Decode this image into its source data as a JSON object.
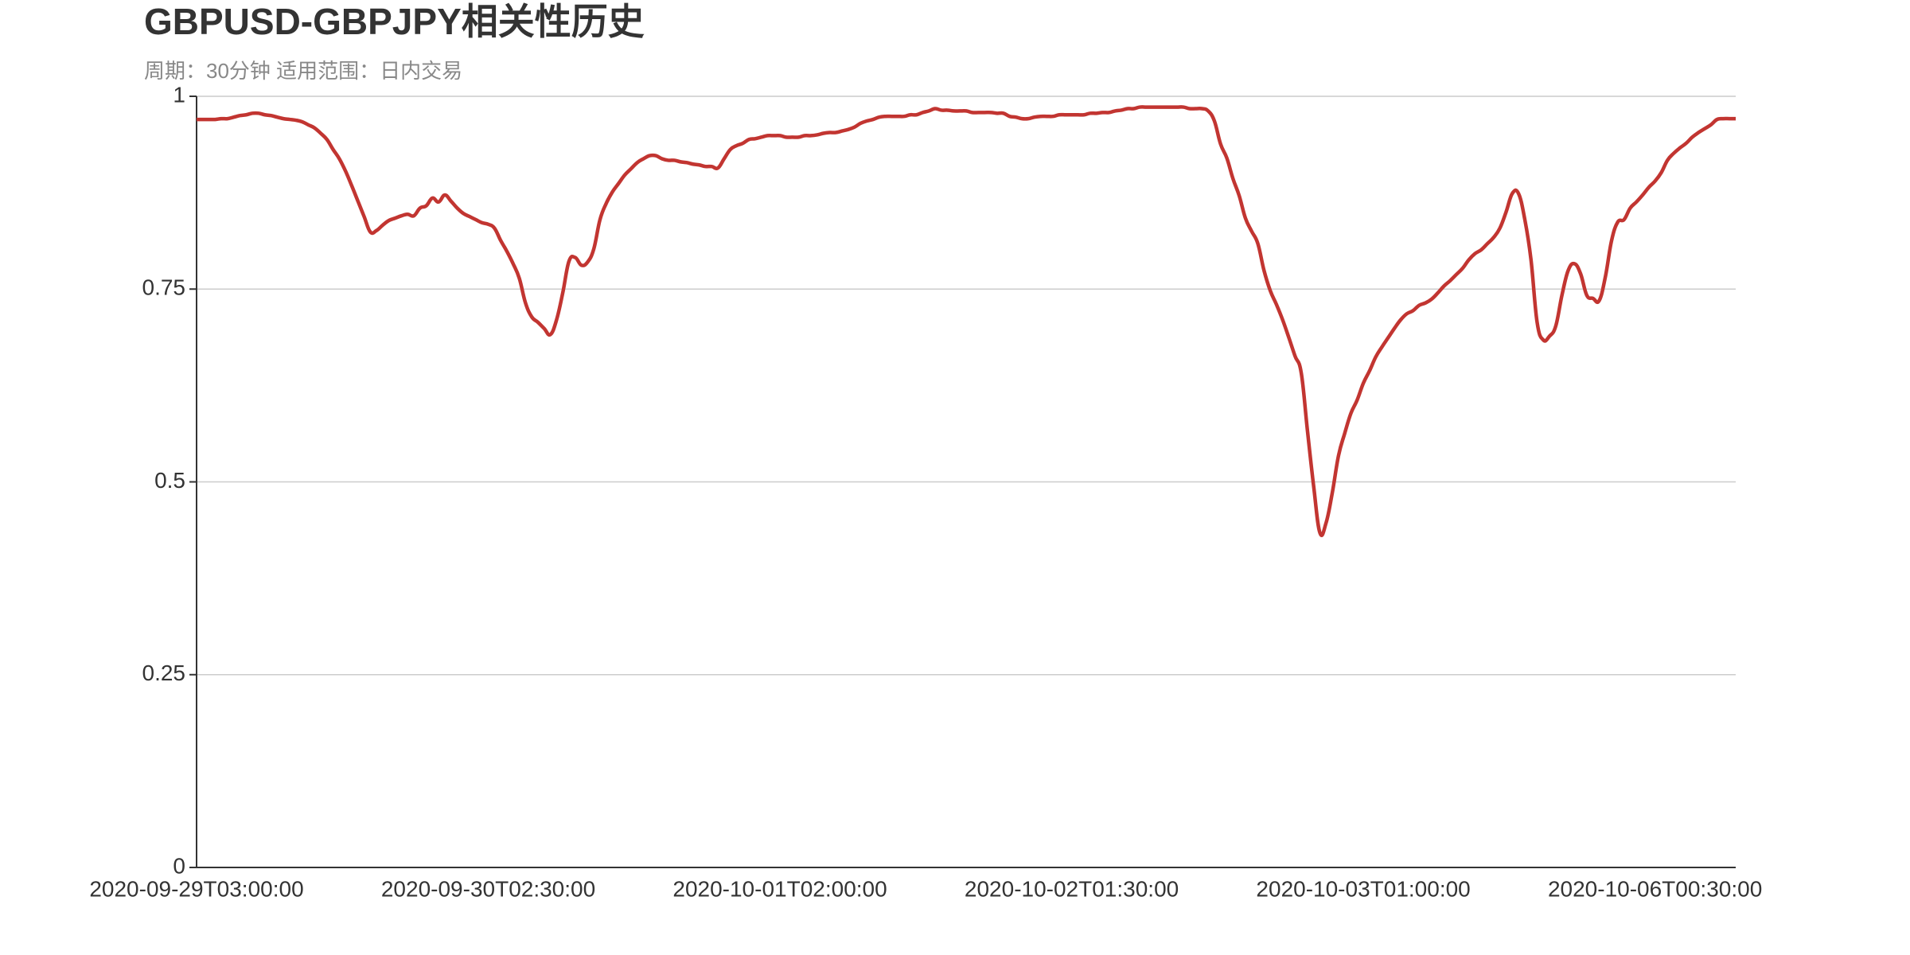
{
  "chart_data": {
    "type": "line",
    "title": "GBPUSD-GBPJPY相关性历史",
    "subtitle": "周期：30分钟 适用范围：日内交易",
    "categories": [
      "2020-09-29T03:00:00",
      null,
      null,
      null,
      null,
      null,
      null,
      null,
      null,
      null,
      null,
      null,
      null,
      null,
      null,
      null,
      null,
      null,
      null,
      null,
      null,
      null,
      null,
      null,
      null,
      null,
      null,
      null,
      null,
      null,
      null,
      null,
      null,
      null,
      null,
      null,
      null,
      null,
      null,
      null,
      null,
      null,
      null,
      null,
      null,
      null,
      null,
      "2020-09-30T02:30:00",
      null,
      null,
      null,
      null,
      null,
      null,
      null,
      null,
      null,
      null,
      null,
      null,
      null,
      null,
      null,
      null,
      null,
      null,
      null,
      null,
      null,
      null,
      null,
      null,
      null,
      null,
      null,
      null,
      null,
      null,
      null,
      null,
      null,
      null,
      null,
      null,
      null,
      null,
      null,
      null,
      null,
      null,
      null,
      null,
      null,
      null,
      "2020-10-01T02:00:00",
      null,
      null,
      null,
      null,
      null,
      null,
      null,
      null,
      null,
      null,
      null,
      null,
      null,
      null,
      null,
      null,
      null,
      null,
      null,
      null,
      null,
      null,
      null,
      null,
      null,
      null,
      null,
      null,
      null,
      null,
      null,
      null,
      null,
      null,
      null,
      null,
      null,
      null,
      null,
      null,
      null,
      null,
      null,
      null,
      null,
      null,
      "2020-10-02T01:30:00",
      null,
      null,
      null,
      null,
      null,
      null,
      null,
      null,
      null,
      null,
      null,
      null,
      null,
      null,
      null,
      null,
      null,
      null,
      null,
      null,
      null,
      null,
      null,
      null,
      null,
      null,
      null,
      null,
      null,
      null,
      null,
      null,
      null,
      null,
      null,
      null,
      null,
      null,
      null,
      null,
      null,
      null,
      null,
      null,
      null,
      null,
      "2020-10-03T01:00:00",
      null,
      null,
      null,
      null,
      null,
      null,
      null,
      null,
      null,
      null,
      null,
      null,
      null,
      null,
      null,
      null,
      null,
      null,
      null,
      null,
      null,
      null,
      null,
      null,
      null,
      null,
      null,
      null,
      null,
      null,
      null,
      null,
      null,
      null,
      null,
      null,
      null,
      null,
      null,
      null,
      null,
      null,
      null,
      null,
      null,
      null,
      "2020-10-06T00:30:00",
      null,
      null,
      null,
      null,
      null,
      null,
      null,
      null,
      null,
      null,
      null,
      null,
      null
    ],
    "series": [
      {
        "color": "#c23531",
        "values": [
          0.97,
          0.97,
          0.97,
          0.97,
          0.971,
          0.971,
          0.973,
          0.975,
          0.976,
          0.978,
          0.978,
          0.976,
          0.975,
          0.973,
          0.971,
          0.97,
          0.969,
          0.967,
          0.963,
          0.959,
          0.952,
          0.944,
          0.931,
          0.919,
          0.903,
          0.884,
          0.864,
          0.844,
          0.824,
          0.826,
          0.833,
          0.839,
          0.842,
          0.845,
          0.847,
          0.845,
          0.855,
          0.858,
          0.868,
          0.863,
          0.872,
          0.864,
          0.855,
          0.848,
          0.844,
          0.84,
          0.836,
          0.834,
          0.829,
          0.813,
          0.799,
          0.783,
          0.764,
          0.732,
          0.714,
          0.707,
          0.699,
          0.691,
          0.71,
          0.745,
          0.786,
          0.791,
          0.781,
          0.785,
          0.802,
          0.84,
          0.861,
          0.876,
          0.887,
          0.898,
          0.906,
          0.914,
          0.919,
          0.923,
          0.923,
          0.919,
          0.917,
          0.917,
          0.915,
          0.914,
          0.912,
          0.911,
          0.909,
          0.909,
          0.907,
          0.919,
          0.931,
          0.936,
          0.939,
          0.944,
          0.945,
          0.947,
          0.949,
          0.949,
          0.949,
          0.947,
          0.947,
          0.947,
          0.949,
          0.949,
          0.95,
          0.952,
          0.953,
          0.953,
          0.955,
          0.957,
          0.96,
          0.965,
          0.968,
          0.97,
          0.973,
          0.974,
          0.974,
          0.974,
          0.974,
          0.976,
          0.976,
          0.979,
          0.981,
          0.984,
          0.982,
          0.982,
          0.981,
          0.981,
          0.981,
          0.979,
          0.979,
          0.979,
          0.979,
          0.978,
          0.978,
          0.974,
          0.973,
          0.971,
          0.971,
          0.973,
          0.974,
          0.974,
          0.974,
          0.976,
          0.976,
          0.976,
          0.976,
          0.976,
          0.978,
          0.978,
          0.979,
          0.979,
          0.981,
          0.982,
          0.984,
          0.984,
          0.986,
          0.986,
          0.986,
          0.986,
          0.986,
          0.986,
          0.986,
          0.986,
          0.984,
          0.984,
          0.984,
          0.981,
          0.968,
          0.938,
          0.92,
          0.893,
          0.871,
          0.842,
          0.825,
          0.809,
          0.774,
          0.748,
          0.73,
          0.71,
          0.687,
          0.663,
          0.641,
          0.566,
          0.494,
          0.434,
          0.447,
          0.486,
          0.534,
          0.563,
          0.589,
          0.606,
          0.628,
          0.644,
          0.662,
          0.675,
          0.687,
          0.699,
          0.71,
          0.718,
          0.722,
          0.729,
          0.732,
          0.737,
          0.745,
          0.754,
          0.761,
          0.769,
          0.777,
          0.788,
          0.796,
          0.801,
          0.809,
          0.817,
          0.829,
          0.85,
          0.874,
          0.874,
          0.841,
          0.789,
          0.707,
          0.684,
          0.689,
          0.702,
          0.742,
          0.774,
          0.783,
          0.77,
          0.742,
          0.738,
          0.735,
          0.766,
          0.813,
          0.837,
          0.84,
          0.855,
          0.863,
          0.872,
          0.882,
          0.89,
          0.901,
          0.917,
          0.926,
          0.933,
          0.939,
          0.947,
          0.953,
          0.958,
          0.963,
          0.97,
          0.971,
          0.971,
          0.971
        ]
      }
    ],
    "ylim": [
      0,
      1
    ],
    "yticks": [
      0,
      0.25,
      0.5,
      0.75,
      1
    ],
    "grid": true
  }
}
